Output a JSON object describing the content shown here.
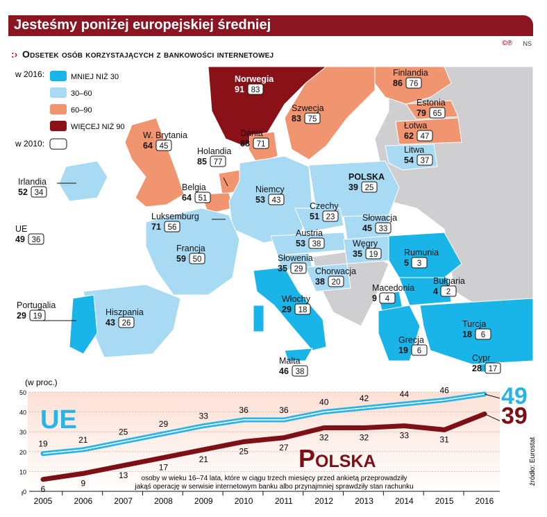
{
  "header": {
    "title": "Jesteśmy poniżej europejskiej średniej",
    "copyright": "©℗",
    "initials": "NS",
    "subtitle": "Odsetek osób korzystających z bankowości internetowej"
  },
  "legend": {
    "year_2016": "w 2016:",
    "year_2010": "w 2010:",
    "items": [
      {
        "label": "MNIEJ NIŻ 30",
        "color": "#1ab5e8"
      },
      {
        "label": "30–60",
        "color": "#a8daf4"
      },
      {
        "label": "60–90",
        "color": "#f0956f"
      },
      {
        "label": "WIĘCEJ NIŻ 90",
        "color": "#8b1118"
      }
    ]
  },
  "source": "źródło: Eurostat",
  "chart_data": [
    {
      "type": "map",
      "title": "Odsetek osób korzystających z bankowości internetowej",
      "value_2016_label": "w 2016:",
      "value_2010_label": "w 2010:",
      "countries": [
        {
          "name": "Norwegia",
          "v2016": 91,
          "v2010": 83,
          "category": "WIĘCEJ NIŻ 90"
        },
        {
          "name": "Finlandia",
          "v2016": 86,
          "v2010": 76,
          "category": "60–90"
        },
        {
          "name": "Szwecja",
          "v2016": 83,
          "v2010": 75,
          "category": "60–90"
        },
        {
          "name": "Estonia",
          "v2016": 79,
          "v2010": 65,
          "category": "60–90"
        },
        {
          "name": "Łotwa",
          "v2016": 62,
          "v2010": 47,
          "category": "60–90"
        },
        {
          "name": "Litwa",
          "v2016": 54,
          "v2010": 37,
          "category": "30–60"
        },
        {
          "name": "Dania",
          "v2016": 88,
          "v2010": 71,
          "category": "60–90"
        },
        {
          "name": "W. Brytania",
          "v2016": 64,
          "v2010": 45,
          "category": "60–90"
        },
        {
          "name": "Holandia",
          "v2016": 85,
          "v2010": 77,
          "category": "60–90"
        },
        {
          "name": "Irlandia",
          "v2016": 52,
          "v2010": 34,
          "category": "30–60"
        },
        {
          "name": "Belgia",
          "v2016": 64,
          "v2010": 51,
          "category": "60–90"
        },
        {
          "name": "Niemcy",
          "v2016": 53,
          "v2010": 43,
          "category": "30–60"
        },
        {
          "name": "POLSKA",
          "v2016": 39,
          "v2010": 25,
          "category": "30–60"
        },
        {
          "name": "Luksemburg",
          "v2016": 71,
          "v2010": 56,
          "category": "60–90"
        },
        {
          "name": "Czechy",
          "v2016": 51,
          "v2010": 23,
          "category": "30–60"
        },
        {
          "name": "Słowacja",
          "v2016": 45,
          "v2010": 33,
          "category": "30–60"
        },
        {
          "name": "UE",
          "v2016": 49,
          "v2010": 36,
          "category": ""
        },
        {
          "name": "Austria",
          "v2016": 53,
          "v2010": 38,
          "category": "30–60"
        },
        {
          "name": "Węgry",
          "v2016": 35,
          "v2010": 19,
          "category": "30–60"
        },
        {
          "name": "Francja",
          "v2016": 59,
          "v2010": 50,
          "category": "30–60"
        },
        {
          "name": "Słowenia",
          "v2016": 35,
          "v2010": 29,
          "category": "30–60"
        },
        {
          "name": "Rumunia",
          "v2016": 5,
          "v2010": 3,
          "category": "MNIEJ NIŻ 30"
        },
        {
          "name": "Chorwacja",
          "v2016": 38,
          "v2010": 20,
          "category": "30–60"
        },
        {
          "name": "Macedonia",
          "v2016": 9,
          "v2010": 4,
          "category": "MNIEJ NIŻ 30"
        },
        {
          "name": "Bułgaria",
          "v2016": 4,
          "v2010": 2,
          "category": "MNIEJ NIŻ 30"
        },
        {
          "name": "Portugalia",
          "v2016": 29,
          "v2010": 19,
          "category": "MNIEJ NIŻ 30"
        },
        {
          "name": "Hiszpania",
          "v2016": 43,
          "v2010": 26,
          "category": "30–60"
        },
        {
          "name": "Włochy",
          "v2016": 29,
          "v2010": 18,
          "category": "MNIEJ NIŻ 30"
        },
        {
          "name": "Turcja",
          "v2016": 18,
          "v2010": 6,
          "category": "MNIEJ NIŻ 30"
        },
        {
          "name": "Grecja",
          "v2016": 19,
          "v2010": 6,
          "category": "MNIEJ NIŻ 30"
        },
        {
          "name": "Cypr",
          "v2016": 28,
          "v2010": 17,
          "category": "MNIEJ NIŻ 30"
        },
        {
          "name": "Malta",
          "v2016": 46,
          "v2010": 38,
          "category": "30–60"
        }
      ]
    },
    {
      "type": "line",
      "ylabel": "(w proc.)",
      "ylim": [
        0,
        50
      ],
      "yticks": [
        0,
        10,
        20,
        30,
        40,
        50
      ],
      "x": [
        2005,
        2006,
        2007,
        2008,
        2009,
        2010,
        2011,
        2012,
        2013,
        2014,
        2015,
        2016
      ],
      "series": [
        {
          "name": "UE",
          "color": "#29b4e6",
          "values": [
            19,
            21,
            25,
            29,
            33,
            36,
            36,
            40,
            42,
            44,
            46,
            49
          ]
        },
        {
          "name": "Polska",
          "color": "#7d0f16",
          "values": [
            6,
            9,
            13,
            17,
            21,
            25,
            27,
            32,
            32,
            33,
            31,
            39
          ]
        }
      ],
      "note": "osoby w wieku 16–74 lata, które w ciągu trzech miesięcy przed ankietą przeprowadziły jakąś operację w serwisie internetowym banku albo przynajmniej sprawdziły stan rachunku"
    }
  ]
}
